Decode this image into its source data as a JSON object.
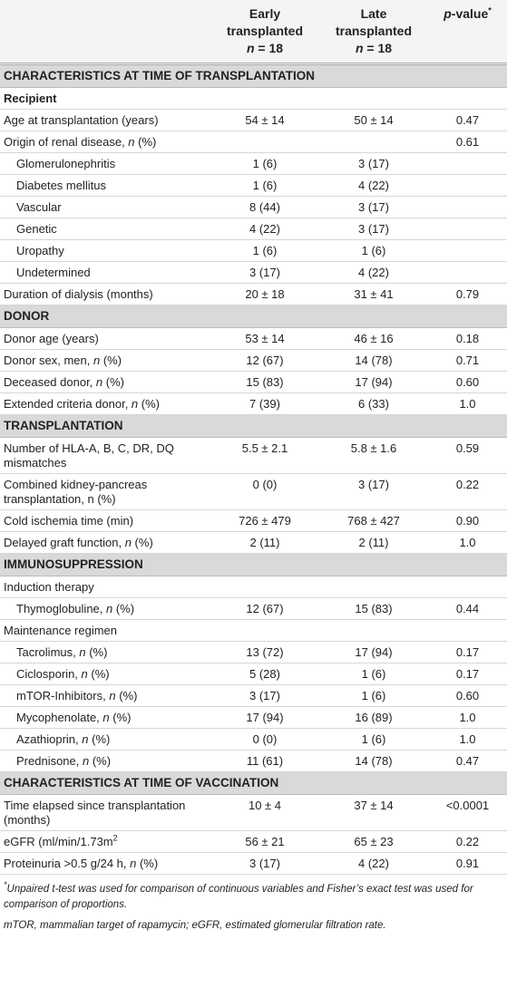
{
  "header": {
    "columns": [
      [
        [
          "Early"
        ],
        [
          "transplanted"
        ],
        [
          {
            "i": "n"
          },
          " = 18"
        ]
      ],
      [
        [
          "Late"
        ],
        [
          "transplanted"
        ],
        [
          {
            "i": "n"
          },
          " = 18"
        ]
      ],
      [
        [
          {
            "i": "p"
          },
          "-value",
          {
            "sup": "*"
          }
        ]
      ]
    ]
  },
  "table": {
    "rows": [
      {
        "kind": "section",
        "label": [
          "CHARACTERISTICS AT TIME OF TRANSPLANTATION"
        ]
      },
      {
        "kind": "sub",
        "label": [
          "Recipient"
        ]
      },
      {
        "kind": "row",
        "level": 0,
        "label": [
          "Age at transplantation (years)"
        ],
        "values": [
          "54 ± 14",
          "50 ± 14",
          "0.47"
        ]
      },
      {
        "kind": "row",
        "level": 0,
        "label": [
          "Origin of renal disease, ",
          {
            "i": "n"
          },
          " (%)"
        ],
        "values": [
          null,
          null,
          "0.61"
        ]
      },
      {
        "kind": "row",
        "level": 1,
        "label": [
          "Glomerulonephritis"
        ],
        "values": [
          "1 (6)",
          "3 (17)",
          null
        ]
      },
      {
        "kind": "row",
        "level": 1,
        "label": [
          "Diabetes mellitus"
        ],
        "values": [
          "1 (6)",
          "4 (22)",
          null
        ]
      },
      {
        "kind": "row",
        "level": 1,
        "label": [
          "Vascular"
        ],
        "values": [
          "8 (44)",
          "3 (17)",
          null
        ]
      },
      {
        "kind": "row",
        "level": 1,
        "label": [
          "Genetic"
        ],
        "values": [
          "4 (22)",
          "3 (17)",
          null
        ]
      },
      {
        "kind": "row",
        "level": 1,
        "label": [
          "Uropathy"
        ],
        "values": [
          "1 (6)",
          "1 (6)",
          null
        ]
      },
      {
        "kind": "row",
        "level": 1,
        "label": [
          "Undetermined"
        ],
        "values": [
          "3 (17)",
          "4 (22)",
          null
        ]
      },
      {
        "kind": "row",
        "level": 0,
        "label": [
          "Duration of dialysis (months)"
        ],
        "values": [
          "20 ± 18",
          "31 ± 41",
          "0.79"
        ]
      },
      {
        "kind": "section",
        "label": [
          "DONOR"
        ]
      },
      {
        "kind": "row",
        "level": 0,
        "label": [
          "Donor age (years)"
        ],
        "values": [
          "53 ± 14",
          "46 ± 16",
          "0.18"
        ]
      },
      {
        "kind": "row",
        "level": 0,
        "label": [
          "Donor sex, men, ",
          {
            "i": "n"
          },
          " (%)"
        ],
        "values": [
          "12 (67)",
          "14 (78)",
          "0.71"
        ]
      },
      {
        "kind": "row",
        "level": 0,
        "label": [
          "Deceased donor, ",
          {
            "i": "n"
          },
          " (%)"
        ],
        "values": [
          "15 (83)",
          "17 (94)",
          "0.60"
        ]
      },
      {
        "kind": "row",
        "level": 0,
        "label": [
          "Extended criteria donor, ",
          {
            "i": "n"
          },
          " (%)"
        ],
        "values": [
          "7 (39)",
          "6 (33)",
          "1.0"
        ]
      },
      {
        "kind": "section",
        "label": [
          "TRANSPLANTATION"
        ]
      },
      {
        "kind": "row",
        "level": 0,
        "label": [
          "Number of HLA-A, B, C, DR, DQ mismatches"
        ],
        "values": [
          "5.5 ± 2.1",
          "5.8 ± 1.6",
          "0.59"
        ]
      },
      {
        "kind": "row",
        "level": 0,
        "label": [
          "Combined kidney-pancreas transplantation, n (%)"
        ],
        "values": [
          "0 (0)",
          "3 (17)",
          "0.22"
        ]
      },
      {
        "kind": "row",
        "level": 0,
        "label": [
          "Cold ischemia time (min)"
        ],
        "values": [
          "726 ± 479",
          "768 ± 427",
          "0.90"
        ]
      },
      {
        "kind": "row",
        "level": 0,
        "label": [
          "Delayed graft function, ",
          {
            "i": "n"
          },
          " (%)"
        ],
        "values": [
          "2 (11)",
          "2 (11)",
          "1.0"
        ]
      },
      {
        "kind": "section",
        "label": [
          "IMMUNOSUPPRESSION"
        ]
      },
      {
        "kind": "row",
        "level": 0,
        "label": [
          "Induction therapy"
        ],
        "values": [
          null,
          null,
          null
        ]
      },
      {
        "kind": "row",
        "level": 1,
        "label": [
          "Thymoglobuline, ",
          {
            "i": "n"
          },
          " (%)"
        ],
        "values": [
          "12 (67)",
          "15 (83)",
          "0.44"
        ]
      },
      {
        "kind": "row",
        "level": 0,
        "label": [
          "Maintenance regimen"
        ],
        "values": [
          null,
          null,
          null
        ]
      },
      {
        "kind": "row",
        "level": 1,
        "label": [
          "Tacrolimus, ",
          {
            "i": "n"
          },
          " (%)"
        ],
        "values": [
          "13 (72)",
          "17 (94)",
          "0.17"
        ]
      },
      {
        "kind": "row",
        "level": 1,
        "label": [
          "Ciclosporin, ",
          {
            "i": "n"
          },
          " (%)"
        ],
        "values": [
          "5 (28)",
          "1 (6)",
          "0.17"
        ]
      },
      {
        "kind": "row",
        "level": 1,
        "label": [
          "mTOR-Inhibitors, ",
          {
            "i": "n"
          },
          " (%)"
        ],
        "values": [
          "3 (17)",
          "1 (6)",
          "0.60"
        ]
      },
      {
        "kind": "row",
        "level": 1,
        "label": [
          "Mycophenolate, ",
          {
            "i": "n"
          },
          " (%)"
        ],
        "values": [
          "17 (94)",
          "16 (89)",
          "1.0"
        ]
      },
      {
        "kind": "row",
        "level": 1,
        "label": [
          "Azathioprin, ",
          {
            "i": "n"
          },
          " (%)"
        ],
        "values": [
          "0 (0)",
          "1 (6)",
          "1.0"
        ]
      },
      {
        "kind": "row",
        "level": 1,
        "label": [
          "Prednisone, ",
          {
            "i": "n"
          },
          " (%)"
        ],
        "values": [
          "11 (61)",
          "14 (78)",
          "0.47"
        ]
      },
      {
        "kind": "section",
        "label": [
          "CHARACTERISTICS AT TIME OF VACCINATION"
        ]
      },
      {
        "kind": "row",
        "level": 0,
        "label": [
          "Time elapsed since transplantation (months)"
        ],
        "values": [
          "10 ± 4",
          "37 ± 14",
          "<0.0001"
        ]
      },
      {
        "kind": "row",
        "level": 0,
        "label": [
          "eGFR (ml/min/1.73m",
          {
            "sup": "2"
          }
        ],
        "values": [
          "56 ± 21",
          "65 ± 23",
          "0.22"
        ]
      },
      {
        "kind": "row",
        "level": 0,
        "label": [
          "Proteinuria >0.5 g/24 h, ",
          {
            "i": "n"
          },
          " (%)"
        ],
        "values": [
          "3 (17)",
          "4 (22)",
          "0.91"
        ]
      }
    ]
  },
  "footnotes": [
    [
      {
        "sup": "*"
      },
      "Unpaired ",
      {
        "i": "t"
      },
      "-test was used for comparison of continuous variables and Fisher’s exact test was used for comparison of proportions."
    ],
    [
      "mTOR, mammalian target of rapamycin; eGFR, estimated glomerular filtration rate."
    ]
  ]
}
